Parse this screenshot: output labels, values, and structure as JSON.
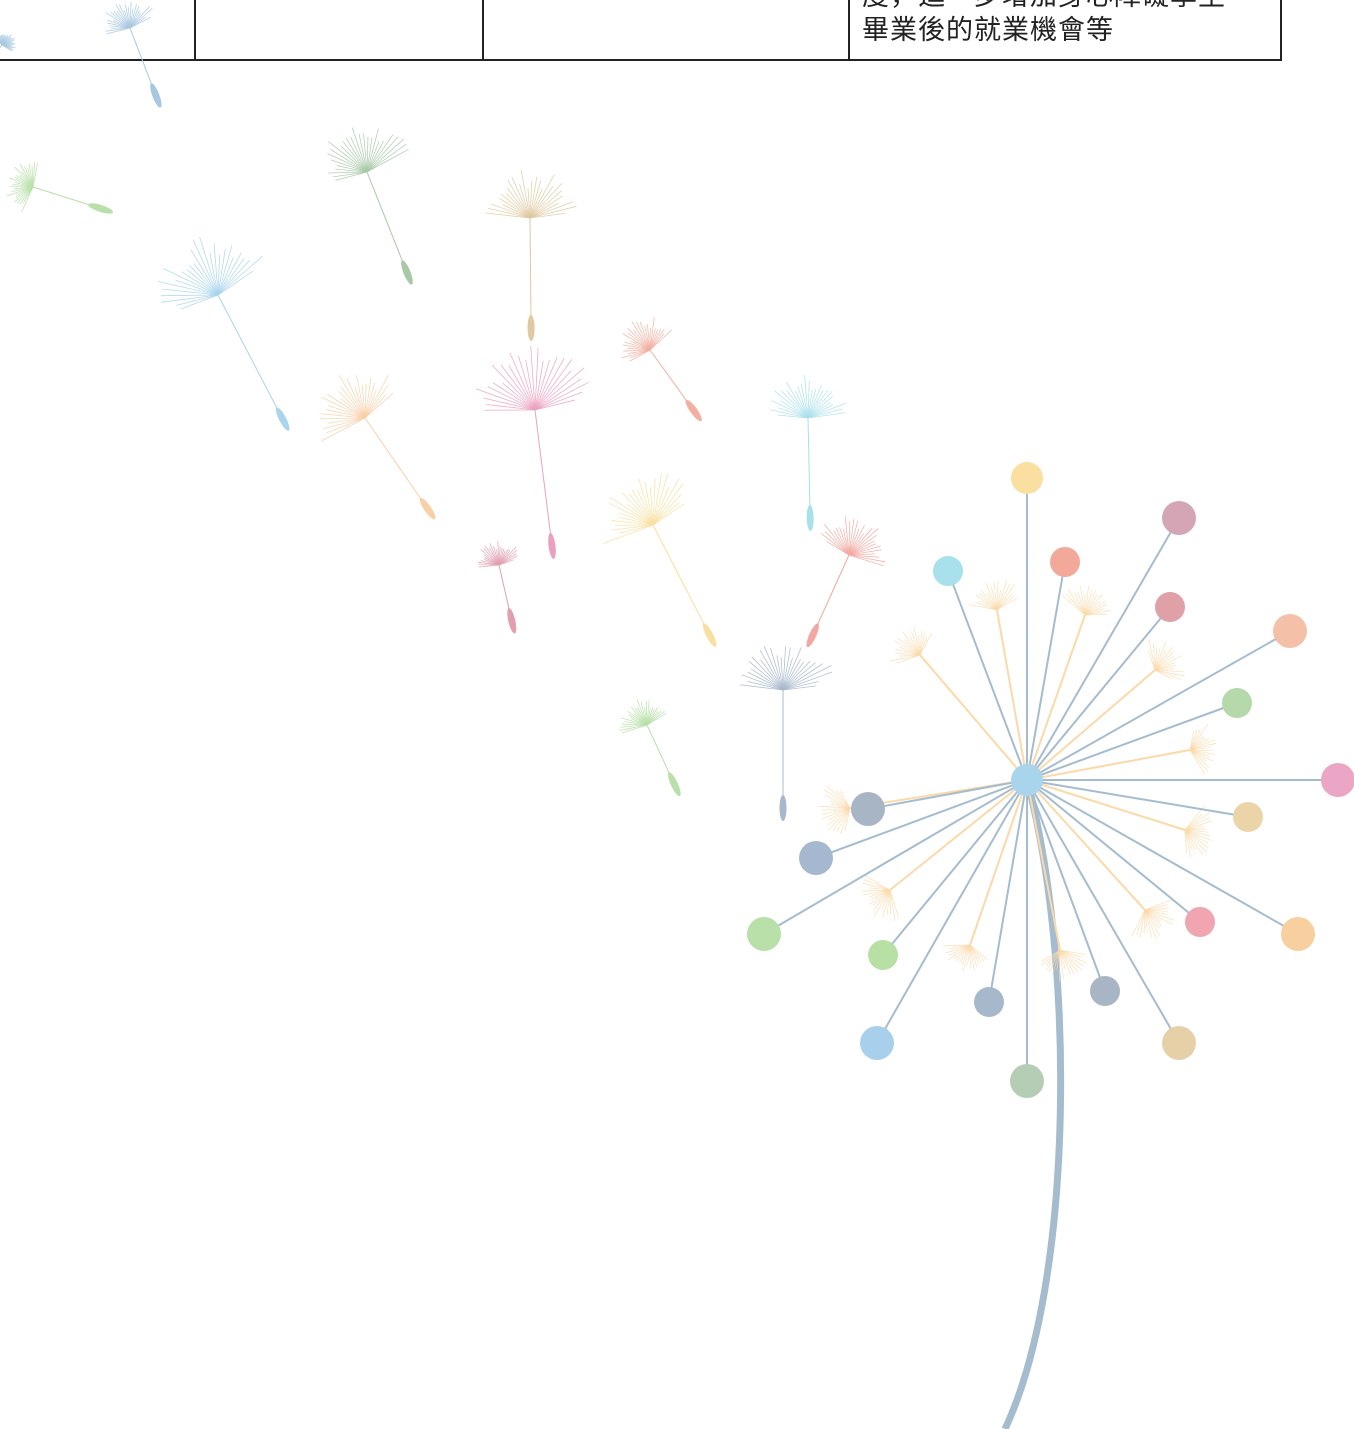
{
  "table": {
    "rows": [
      [
        null,
        null,
        null,
        [
          "度，進一步增加身心障礙學生",
          "畢業後的就業機會等"
        ]
      ]
    ]
  }
}
